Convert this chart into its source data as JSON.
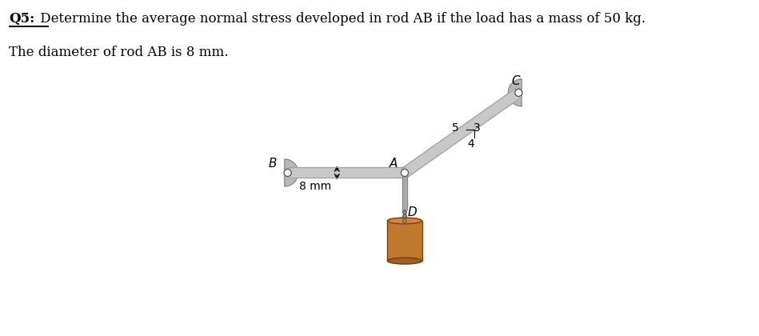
{
  "title_q5": "Q5:",
  "title_text": " Determine the average normal stress developed in rod AB if the load has a mass of 50 kg.",
  "subtitle": "The diameter of rod AB is 8 mm.",
  "bg_color": "#ffffff",
  "label_B": "B",
  "label_A": "A",
  "label_C": "C",
  "label_D": "D",
  "label_8mm": "8 mm",
  "label_3": "3",
  "label_4": "4",
  "label_5": "5",
  "rod_color": "#c8c8c8",
  "rod_color_dark": "#a0a0a0",
  "mount_color": "#b8b8b8",
  "mount_edge": "#888888",
  "load_body_color": "#C07830",
  "load_top_color": "#D08840",
  "load_bot_color": "#A06020",
  "load_edge_color": "#7A4010",
  "pin_fill": "#ffffff",
  "pin_edge": "#555555",
  "chain_color": "#909090",
  "chain_edge": "#606060",
  "vert_rod_color": "#aaaaaa",
  "vert_rod_edge": "#888888"
}
